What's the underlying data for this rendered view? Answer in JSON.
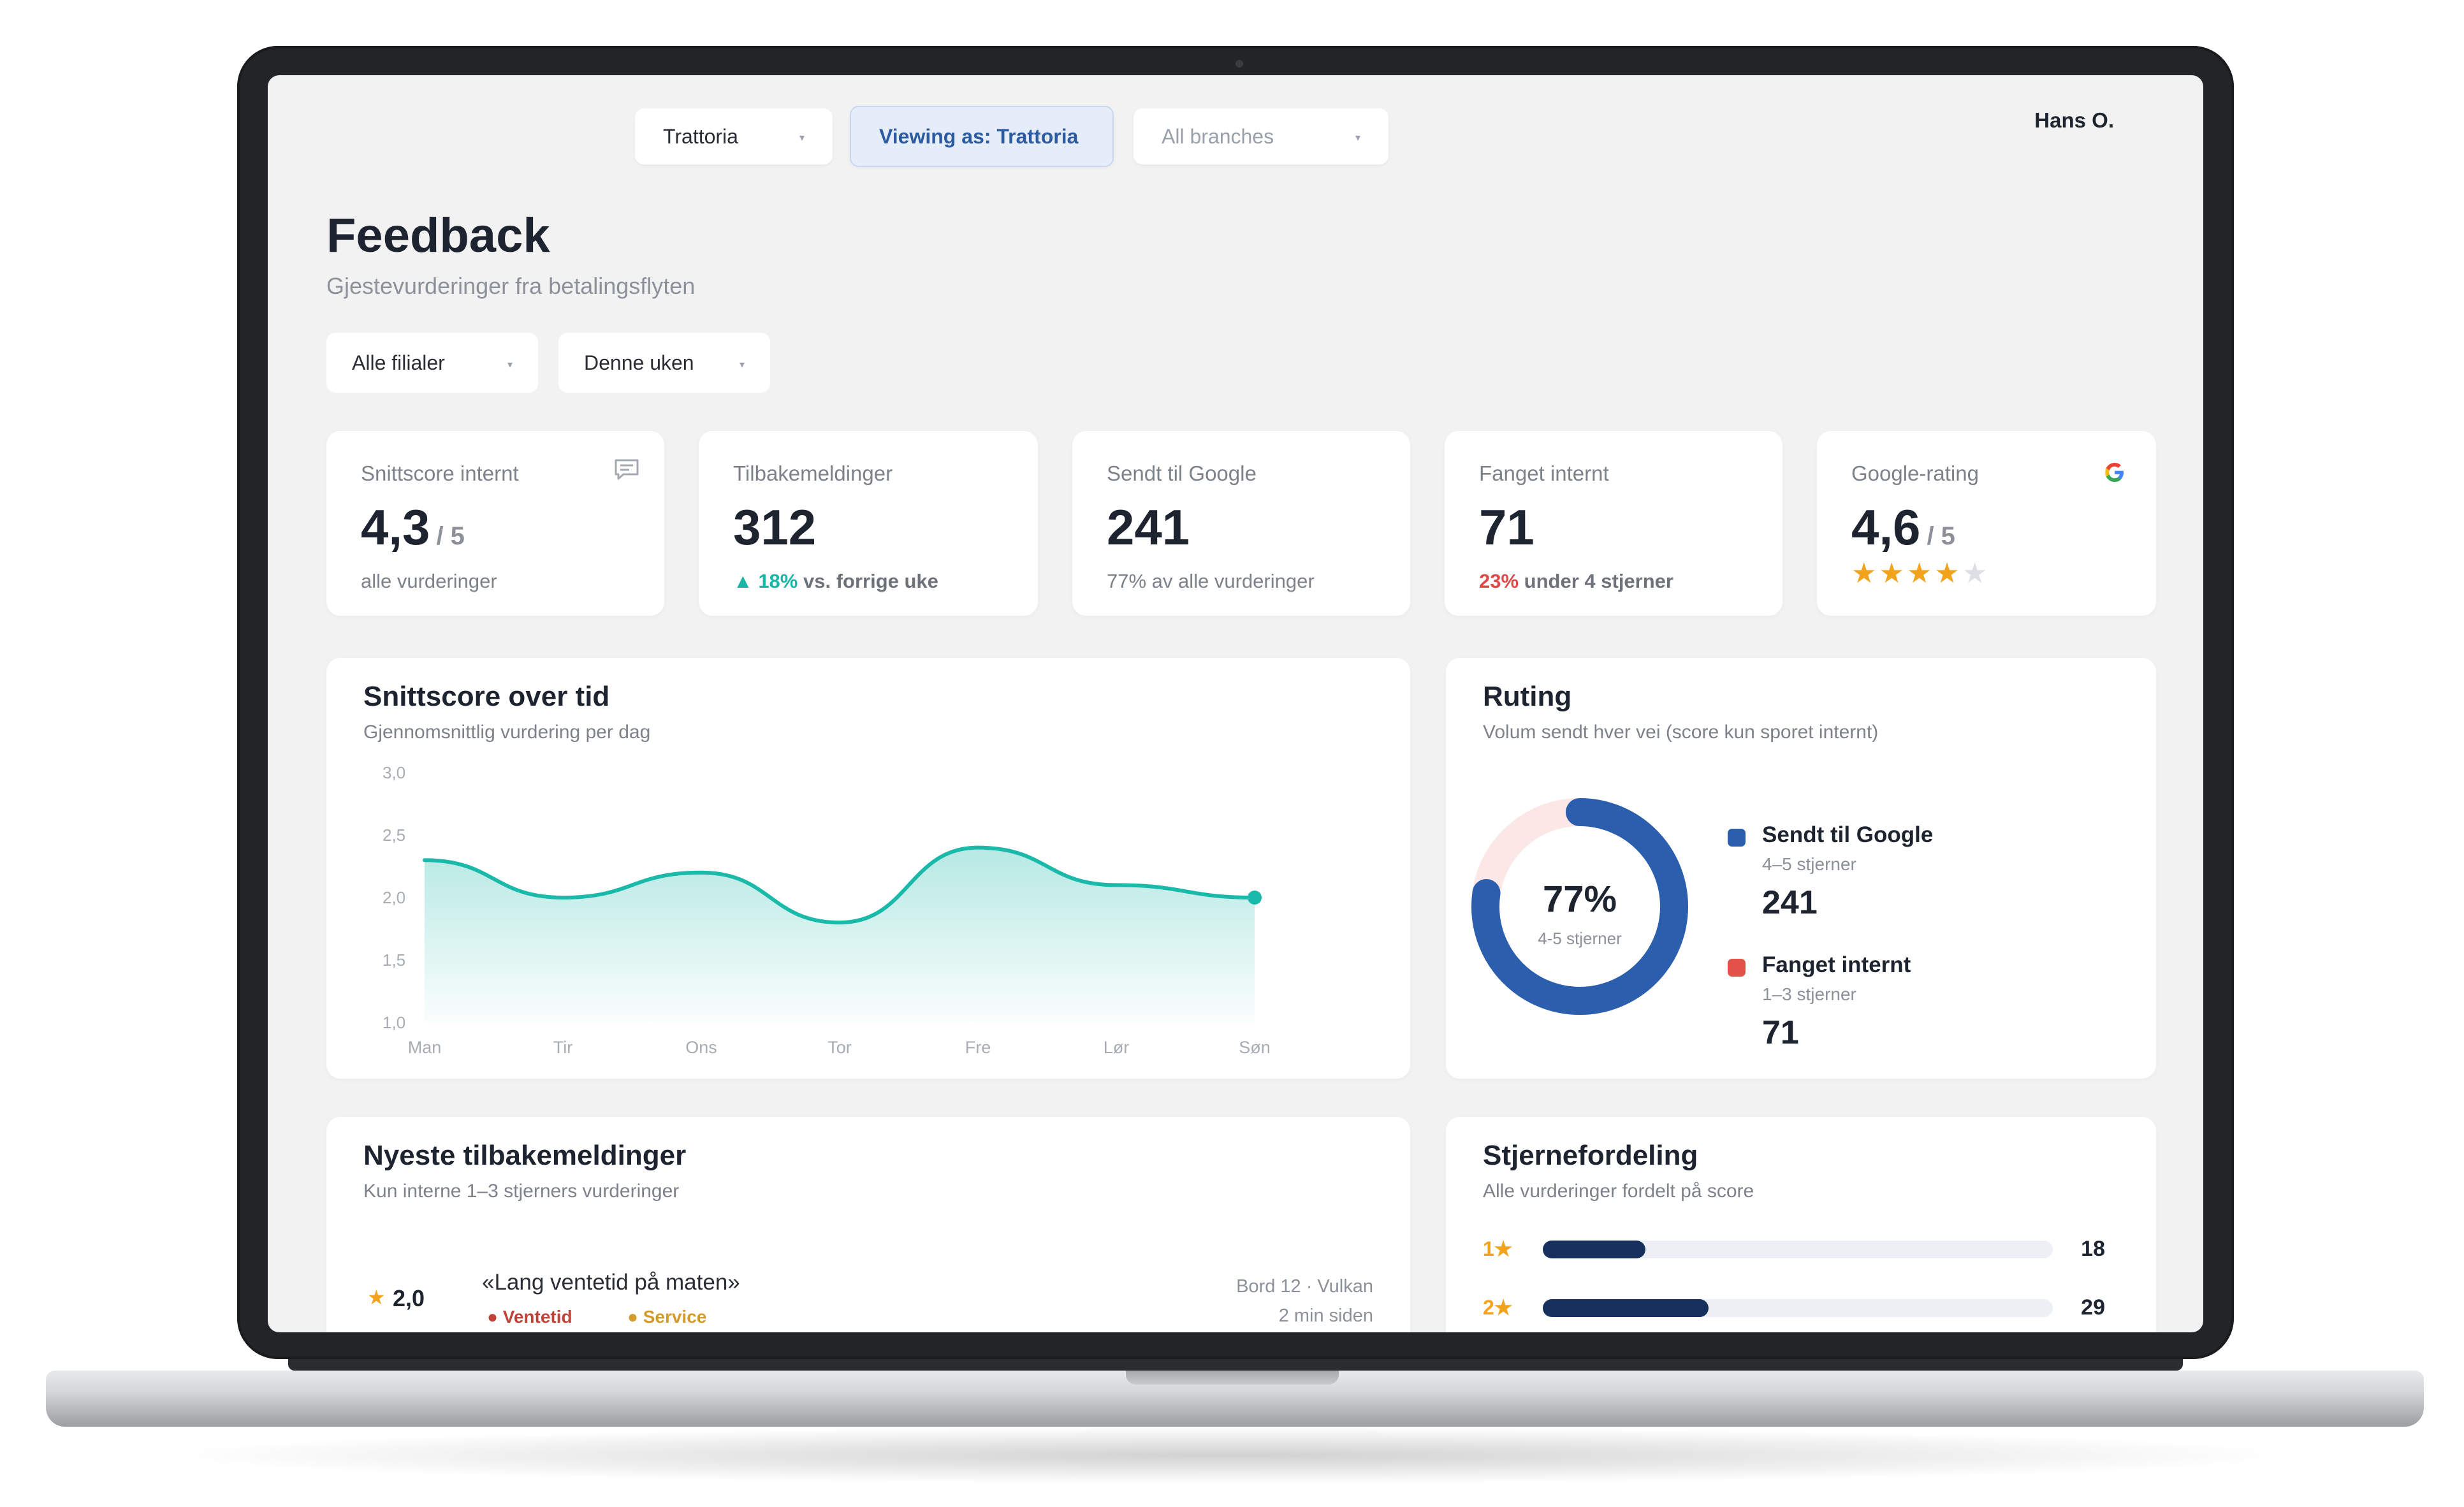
{
  "topbar": {
    "restaurant": "Trattoria",
    "viewing_as": "Viewing as: Trattoria",
    "branches": "All branches",
    "user": "Hans O."
  },
  "page": {
    "title": "Feedback",
    "subtitle": "Gjestevurderinger fra betalingsflyten"
  },
  "filters": {
    "branch": "Alle filialer",
    "period": "Denne uken"
  },
  "kpis": [
    {
      "label": "Snittscore internt",
      "value": "4,3",
      "suffix": "/ 5",
      "sub": "alle vurderinger",
      "icon": "chat-icon"
    },
    {
      "label": "Tilbakemeldinger",
      "value": "312",
      "sub_highlight": "18%",
      "sub": "vs. forrige uke",
      "trend": "up"
    },
    {
      "label": "Sendt til Google",
      "value": "241",
      "sub": "77% av alle vurderinger"
    },
    {
      "label": "Fanget internt",
      "value": "71",
      "sub_highlight": "23%",
      "sub": "under 4 stjerner"
    },
    {
      "label": "Google-rating",
      "value": "4,6",
      "suffix": "/ 5",
      "stars": 4,
      "icon": "google-icon"
    }
  ],
  "trend_chart": {
    "title": "Snittscore over tid",
    "subtitle": "Gjennomsnittlig vurdering per dag"
  },
  "chart_data": [
    {
      "type": "area",
      "title": "Snittscore over tid",
      "subtitle": "Gjennomsnittlig vurdering per dag",
      "categories": [
        "Man",
        "Tir",
        "Ons",
        "Tor",
        "Fre",
        "Lør",
        "Søn"
      ],
      "values": [
        2.3,
        2.0,
        2.2,
        1.8,
        2.4,
        2.1,
        2.0
      ],
      "y_ticks": [
        "3,0",
        "2,5",
        "2,0",
        "1,5",
        "1,0"
      ],
      "ylim": [
        1.0,
        3.0
      ],
      "color": "#1ab9a9"
    },
    {
      "type": "pie",
      "title": "Ruting",
      "subtitle": "Volum sendt hver vei (score kun sporet internt)",
      "center_value": "77%",
      "center_label": "4-5 stjerner",
      "slices": [
        {
          "name": "Sendt til Google",
          "detail": "4–5 stjerner",
          "value": 241,
          "color": "#2b5fad"
        },
        {
          "name": "Fanget internt",
          "detail": "1–3 stjerner",
          "value": 71,
          "color": "#e35248"
        }
      ]
    },
    {
      "type": "bar",
      "title": "Stjernefordeling",
      "subtitle": "Alle vurderinger fordelt på score",
      "categories": [
        "1★",
        "2★"
      ],
      "values": [
        18,
        29
      ],
      "max_value": 100
    }
  ],
  "recent": {
    "title": "Nyeste tilbakemeldinger",
    "subtitle": "Kun interne 1–3 stjerners vurderinger",
    "items": [
      {
        "score": "2,0",
        "quote": "«Lang ventetid på maten»",
        "tags": [
          {
            "label": "Ventetid",
            "color": "#c0433a"
          },
          {
            "label": "Service",
            "color": "#d39b2a"
          }
        ],
        "location": "Bord 12 · Vulkan",
        "time": "2 min siden"
      }
    ]
  }
}
